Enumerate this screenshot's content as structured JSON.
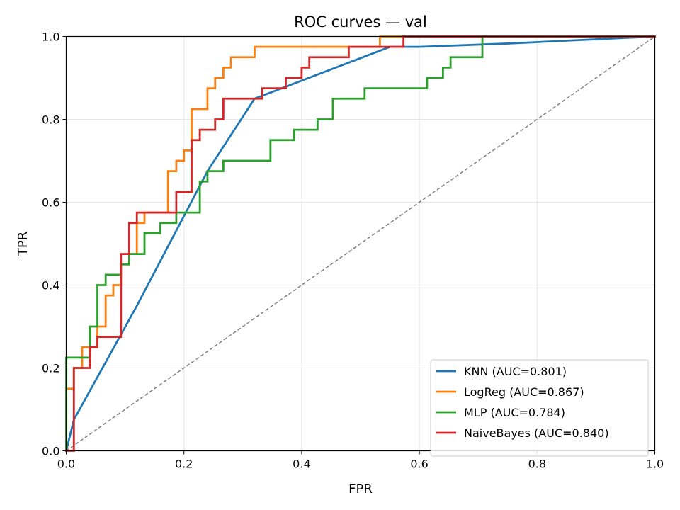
{
  "chart_data": {
    "type": "line",
    "title": "ROC curves — val",
    "xlabel": "FPR",
    "ylabel": "TPR",
    "xlim": [
      0,
      1
    ],
    "ylim": [
      0,
      1
    ],
    "xticks": [
      "0.0",
      "0.2",
      "0.4",
      "0.6",
      "0.8",
      "1.0"
    ],
    "yticks": [
      "0.0",
      "0.2",
      "0.4",
      "0.6",
      "0.8",
      "1.0"
    ],
    "grid": true,
    "legend_position": "lower-right",
    "diagonal": {
      "x": [
        0,
        1
      ],
      "y": [
        0,
        1
      ],
      "color": "#808080",
      "style": "dashed"
    },
    "series": [
      {
        "name": "KNN (AUC=0.801)",
        "color": "#1f77b4",
        "x": [
          0,
          0.013,
          0.12,
          0.24,
          0.32,
          0.55,
          0.6,
          0.75,
          1.0
        ],
        "y": [
          0,
          0.075,
          0.35,
          0.675,
          0.85,
          0.975,
          0.975,
          0.983,
          1.0
        ]
      },
      {
        "name": "LogReg (AUC=0.867)",
        "color": "#ff7f0e",
        "x": [
          0,
          0,
          0.013,
          0.013,
          0.027,
          0.027,
          0.053,
          0.053,
          0.067,
          0.067,
          0.08,
          0.08,
          0.093,
          0.093,
          0.107,
          0.107,
          0.12,
          0.12,
          0.133,
          0.133,
          0.173,
          0.173,
          0.187,
          0.187,
          0.2,
          0.2,
          0.213,
          0.213,
          0.24,
          0.24,
          0.253,
          0.253,
          0.267,
          0.267,
          0.28,
          0.28,
          0.32,
          0.32,
          0.533,
          0.533,
          1.0
        ],
        "y": [
          0,
          0.15,
          0.15,
          0.2,
          0.2,
          0.25,
          0.25,
          0.3,
          0.3,
          0.375,
          0.375,
          0.4,
          0.4,
          0.45,
          0.45,
          0.475,
          0.475,
          0.55,
          0.55,
          0.575,
          0.575,
          0.675,
          0.675,
          0.7,
          0.7,
          0.725,
          0.725,
          0.825,
          0.825,
          0.875,
          0.875,
          0.9,
          0.9,
          0.925,
          0.925,
          0.95,
          0.95,
          0.975,
          0.975,
          1.0,
          1.0
        ]
      },
      {
        "name": "MLP (AUC=0.784)",
        "color": "#2ca02c",
        "x": [
          0,
          0,
          0.04,
          0.04,
          0.053,
          0.053,
          0.067,
          0.067,
          0.093,
          0.093,
          0.107,
          0.107,
          0.133,
          0.133,
          0.16,
          0.16,
          0.187,
          0.187,
          0.227,
          0.227,
          0.24,
          0.24,
          0.267,
          0.267,
          0.347,
          0.347,
          0.387,
          0.387,
          0.427,
          0.427,
          0.453,
          0.453,
          0.507,
          0.507,
          0.613,
          0.613,
          0.64,
          0.64,
          0.653,
          0.653,
          0.707,
          0.707,
          1.0
        ],
        "y": [
          0,
          0.225,
          0.225,
          0.3,
          0.3,
          0.4,
          0.4,
          0.425,
          0.425,
          0.45,
          0.45,
          0.475,
          0.475,
          0.525,
          0.525,
          0.55,
          0.55,
          0.575,
          0.575,
          0.65,
          0.65,
          0.675,
          0.675,
          0.7,
          0.7,
          0.75,
          0.75,
          0.775,
          0.775,
          0.8,
          0.8,
          0.85,
          0.85,
          0.875,
          0.875,
          0.9,
          0.9,
          0.925,
          0.925,
          0.95,
          0.95,
          1.0,
          1.0
        ]
      },
      {
        "name": "NaiveBayes (AUC=0.840)",
        "color": "#d62728",
        "x": [
          0,
          0.013,
          0.013,
          0.04,
          0.04,
          0.053,
          0.053,
          0.093,
          0.093,
          0.107,
          0.107,
          0.12,
          0.12,
          0.187,
          0.187,
          0.213,
          0.213,
          0.227,
          0.227,
          0.253,
          0.253,
          0.267,
          0.267,
          0.333,
          0.333,
          0.373,
          0.373,
          0.4,
          0.4,
          0.413,
          0.413,
          0.48,
          0.48,
          0.573,
          0.573,
          1.0
        ],
        "y": [
          0,
          0,
          0.2,
          0.2,
          0.25,
          0.25,
          0.275,
          0.275,
          0.475,
          0.475,
          0.55,
          0.55,
          0.575,
          0.575,
          0.625,
          0.625,
          0.75,
          0.75,
          0.775,
          0.775,
          0.8,
          0.8,
          0.85,
          0.85,
          0.875,
          0.875,
          0.9,
          0.9,
          0.925,
          0.925,
          0.95,
          0.95,
          0.975,
          0.975,
          1.0,
          1.0
        ]
      }
    ]
  }
}
